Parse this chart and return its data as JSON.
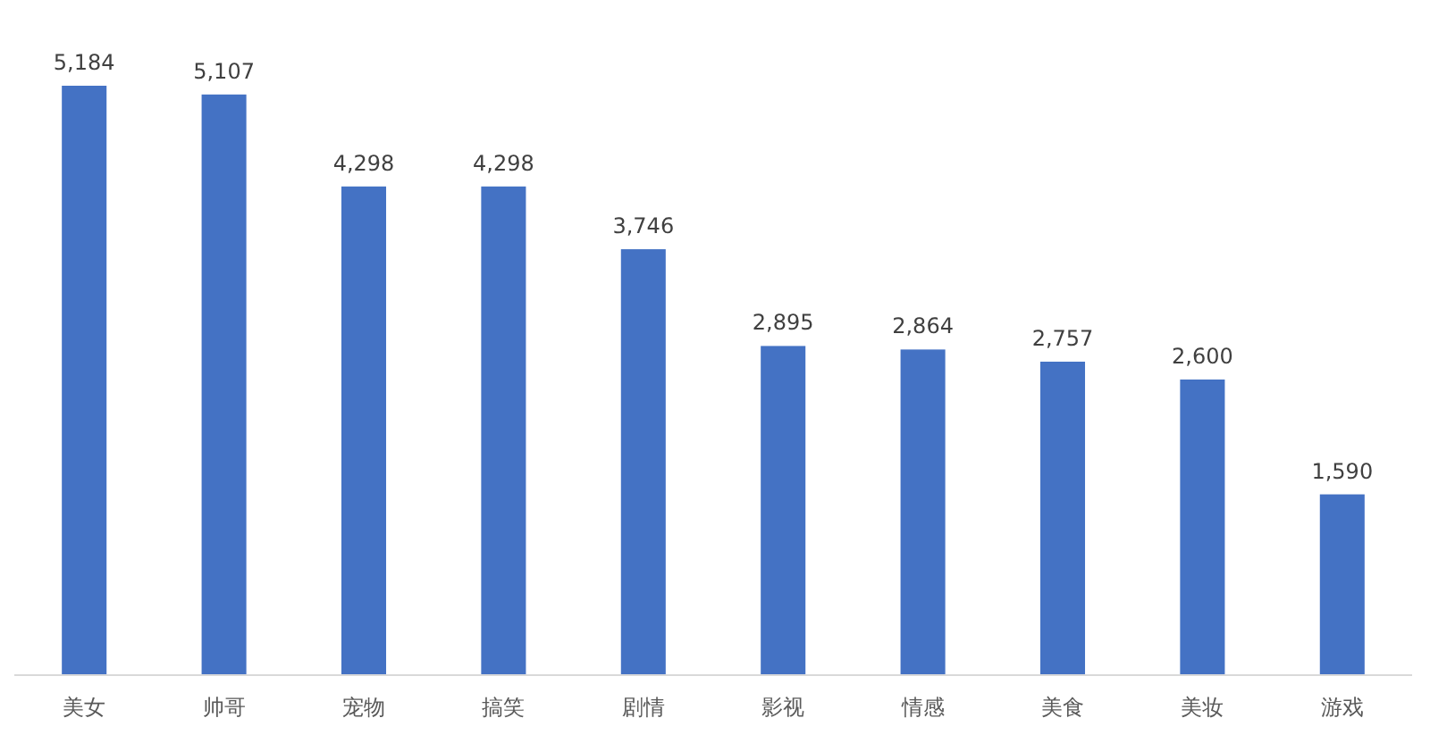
{
  "chart_data": {
    "type": "bar",
    "categories": [
      "美女",
      "帅哥",
      "宠物",
      "搞笑",
      "剧情",
      "影视",
      "情感",
      "美食",
      "美妆",
      "游戏"
    ],
    "values": [
      5184,
      5107,
      4298,
      4298,
      3746,
      2895,
      2864,
      2757,
      2600,
      1590
    ],
    "value_labels": [
      "5,184",
      "5,107",
      "4,298",
      "4,298",
      "3,746",
      "2,895",
      "2,864",
      "2,757",
      "2,600",
      "1,590"
    ],
    "color": "#4472c4"
  }
}
